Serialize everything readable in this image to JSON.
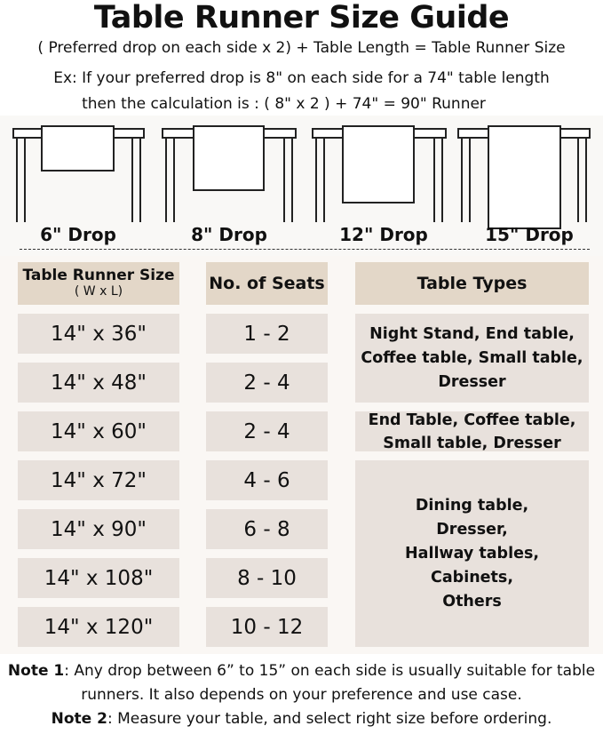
{
  "title": "Table Runner Size Guide",
  "formula": "( Preferred drop on each side x 2) + Table Length = Table Runner Size",
  "example_line1": "Ex: If your preferred drop is 8\" on each side for a 74\" table length",
  "example_line2": "then the calculation is : ( 8\" x 2 ) + 74\" = 90\" Runner",
  "drops": [
    "6\" Drop",
    "8\" Drop",
    "12\" Drop",
    "15\" Drop"
  ],
  "table": {
    "headers": {
      "size": "Table Runner Size",
      "size_sub": "( W x L)",
      "seats": "No. of Seats",
      "types": "Table Types"
    },
    "rows": [
      {
        "size": "14\" x 36\"",
        "seats": "1 - 2"
      },
      {
        "size": "14\" x 48\"",
        "seats": "2 - 4"
      },
      {
        "size": "14\" x 60\"",
        "seats": "2 - 4"
      },
      {
        "size": "14\" x 72\"",
        "seats": "4 - 6"
      },
      {
        "size": "14\" x 90\"",
        "seats": "6 - 8"
      },
      {
        "size": "14\" x 108\"",
        "seats": "8 - 10"
      },
      {
        "size": "14\" x 120\"",
        "seats": "10 - 12"
      }
    ],
    "types": [
      "Night Stand, End table, Coffee table, Small table, Dresser",
      "End Table, Coffee table, Small table, Dresser",
      "Dining table, Dresser, Hallway tables, Cabinets, Others"
    ]
  },
  "notes": {
    "note1_label": "Note 1",
    "note1_text": ": Any drop between 6” to 15” on each side is usually suitable for table runners. It also depends on your preference and use case.",
    "note2_label": "Note 2",
    "note2_text": ": Measure your table, and select right size before ordering."
  },
  "colors": {
    "header": "#e3d7c8",
    "cell": "#e8e1dc",
    "background": "#faf7f4"
  }
}
